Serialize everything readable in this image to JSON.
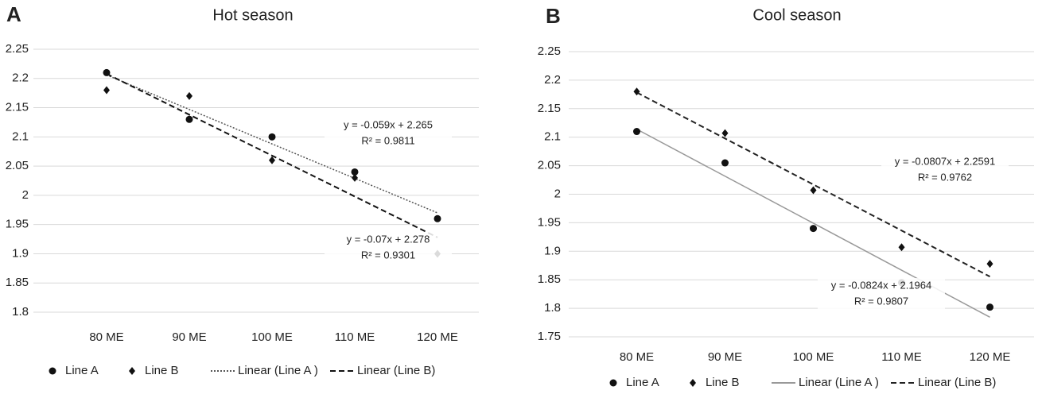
{
  "chart_data": [
    {
      "type": "scatter",
      "panel": "A",
      "title": "Hot season",
      "categories": [
        "80 ME",
        "90 ME",
        "100 ME",
        "110 ME",
        "120 ME"
      ],
      "ylim": [
        1.8,
        2.25
      ],
      "yticks": [
        1.8,
        1.85,
        1.9,
        1.95,
        2,
        2.05,
        2.1,
        2.15,
        2.2,
        2.25
      ],
      "grid": true,
      "series": [
        {
          "name": "Line A",
          "marker": "circle",
          "color": "#111111",
          "values": [
            2.21,
            2.13,
            2.1,
            2.04,
            1.96
          ],
          "trend": {
            "name": "Linear (Line A )",
            "equation": "y = -0.059x + 2.265",
            "r2": "R² = 0.9811",
            "slope": -0.059,
            "intercept": 2.265,
            "color": "#555555",
            "dash": "dotted"
          }
        },
        {
          "name": "Line B",
          "marker": "diamond",
          "color": "#111111",
          "values": [
            2.18,
            2.17,
            2.06,
            2.03,
            1.9
          ],
          "trend": {
            "name": "Linear (Line B)",
            "equation": "y = -0.07x + 2.278",
            "r2": "R² = 0.9301",
            "slope": -0.07,
            "intercept": 2.278,
            "color": "#111111",
            "dash": "dashed"
          }
        }
      ]
    },
    {
      "type": "scatter",
      "panel": "B",
      "title": "Cool season",
      "categories": [
        "80 ME",
        "90 ME",
        "100 ME",
        "110 ME",
        "120 ME"
      ],
      "ylim": [
        1.75,
        2.25
      ],
      "yticks": [
        1.75,
        1.8,
        1.85,
        1.9,
        1.95,
        2,
        2.05,
        2.1,
        2.15,
        2.2,
        2.25
      ],
      "grid": true,
      "series": [
        {
          "name": "Line A",
          "marker": "circle",
          "color": "#111111",
          "values": [
            2.11,
            2.055,
            1.94,
            1.845,
            1.802
          ],
          "trend": {
            "name": "Linear (Line A )",
            "equation": "y = -0.0824x + 2.1964",
            "r2": "R² = 0.9807",
            "slope": -0.0824,
            "intercept": 2.1964,
            "color": "#999999",
            "dash": "solid"
          }
        },
        {
          "name": "Line B",
          "marker": "diamond",
          "color": "#111111",
          "values": [
            2.18,
            2.107,
            2.007,
            1.907,
            1.878
          ],
          "trend": {
            "name": "Linear (Line B)",
            "equation": "y = -0.0807x + 2.2591",
            "r2": "R² = 0.9762",
            "slope": -0.0807,
            "intercept": 2.2591,
            "color": "#222222",
            "dash": "dashed"
          }
        }
      ]
    }
  ]
}
